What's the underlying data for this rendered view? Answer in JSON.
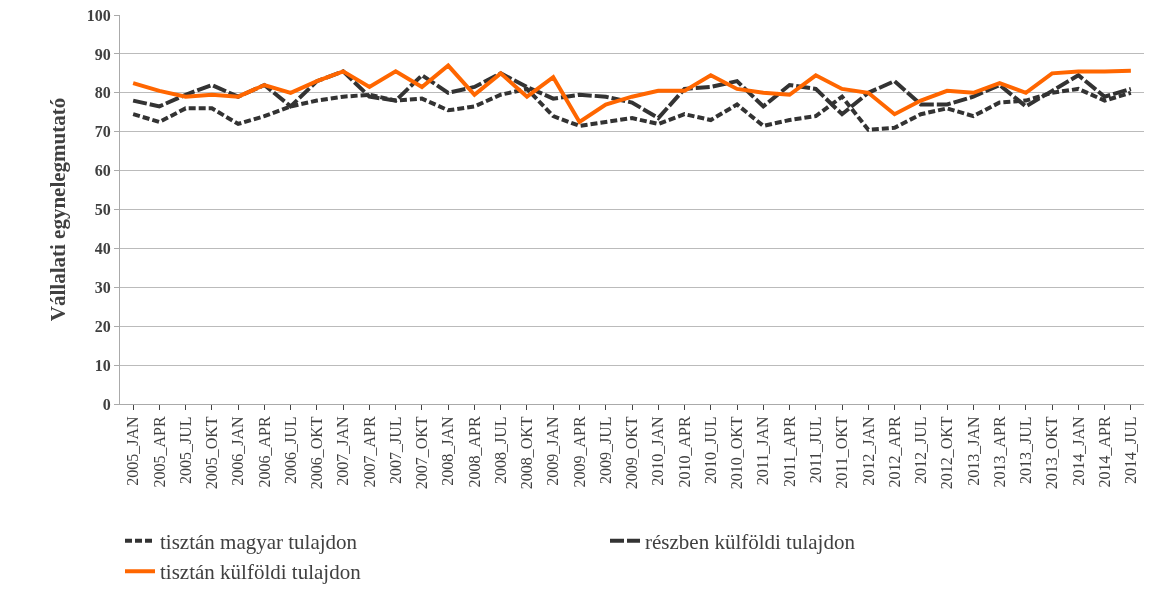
{
  "chart_data": {
    "type": "line",
    "ylabel": "Vállalati egynelegmutató",
    "categories": [
      "2005_JAN",
      "2005_APR",
      "2005_JUL",
      "2005_OKT",
      "2006_JAN",
      "2006_APR",
      "2006_JUL",
      "2006_OKT",
      "2007_JAN",
      "2007_APR",
      "2007_JUL",
      "2007_OKT",
      "2008_JAN",
      "2008_APR",
      "2008_JUL",
      "2008_OKT",
      "2009_JAN",
      "2009_APR",
      "2009_JUL",
      "2009_OKT",
      "2010_JAN",
      "2010_APR",
      "2010_JUL",
      "2010_OKT",
      "2011_JAN",
      "2011_APR",
      "2011_JUL",
      "2011_OKT",
      "2012_JAN",
      "2012_APR",
      "2012_JUL",
      "2012_OKT",
      "2013_JAN",
      "2013_APR",
      "2013_JUL",
      "2013_OKT",
      "2014_JAN",
      "2014_APR",
      "2014_JUL"
    ],
    "series": [
      {
        "name": "tisztán magyar tulajdon",
        "color": "#333333",
        "line_style": "dashed",
        "values": [
          74.5,
          72.5,
          76,
          76,
          72,
          74,
          76.5,
          78,
          79,
          79.5,
          78,
          78.5,
          75.5,
          76.5,
          79.5,
          81,
          74,
          71.5,
          72.5,
          73.5,
          72,
          74.5,
          73,
          77,
          71.5,
          73,
          74,
          79,
          70.5,
          71,
          74.5,
          76,
          74,
          77.5,
          78,
          80,
          81,
          78,
          80
        ]
      },
      {
        "name": "részben külföldi tulajdon",
        "color": "#333333",
        "line_style": "dashed",
        "values": [
          78,
          76.5,
          79.5,
          82,
          79,
          82,
          76.5,
          83,
          85.5,
          79,
          78,
          84.5,
          80,
          81.5,
          85,
          81.5,
          78.5,
          79.5,
          79,
          77.5,
          73.5,
          81,
          81.5,
          83,
          76.5,
          82,
          81,
          74.5,
          80,
          83,
          77,
          77,
          79,
          82,
          76.5,
          80.5,
          84.5,
          79,
          81
        ]
      },
      {
        "name": "tisztán külföldi tulajdon",
        "color": "#ff6600",
        "line_style": "solid",
        "values": [
          82.5,
          80.5,
          79,
          79.5,
          79,
          82,
          80,
          83,
          85.5,
          81.5,
          85.5,
          81.5,
          87,
          79.5,
          85,
          79,
          84,
          72.5,
          77,
          79,
          80.5,
          80.5,
          84.5,
          81,
          80,
          79.5,
          84.5,
          81,
          80,
          74.5,
          78,
          80.5,
          80,
          82.5,
          80,
          85,
          85.5,
          85.5,
          85.7
        ]
      }
    ],
    "ylim": [
      0,
      100
    ],
    "yticks": [
      0,
      10,
      20,
      30,
      40,
      50,
      60,
      70,
      80,
      90,
      100
    ],
    "grid": "y",
    "legend": "bottom",
    "marker": "none"
  }
}
